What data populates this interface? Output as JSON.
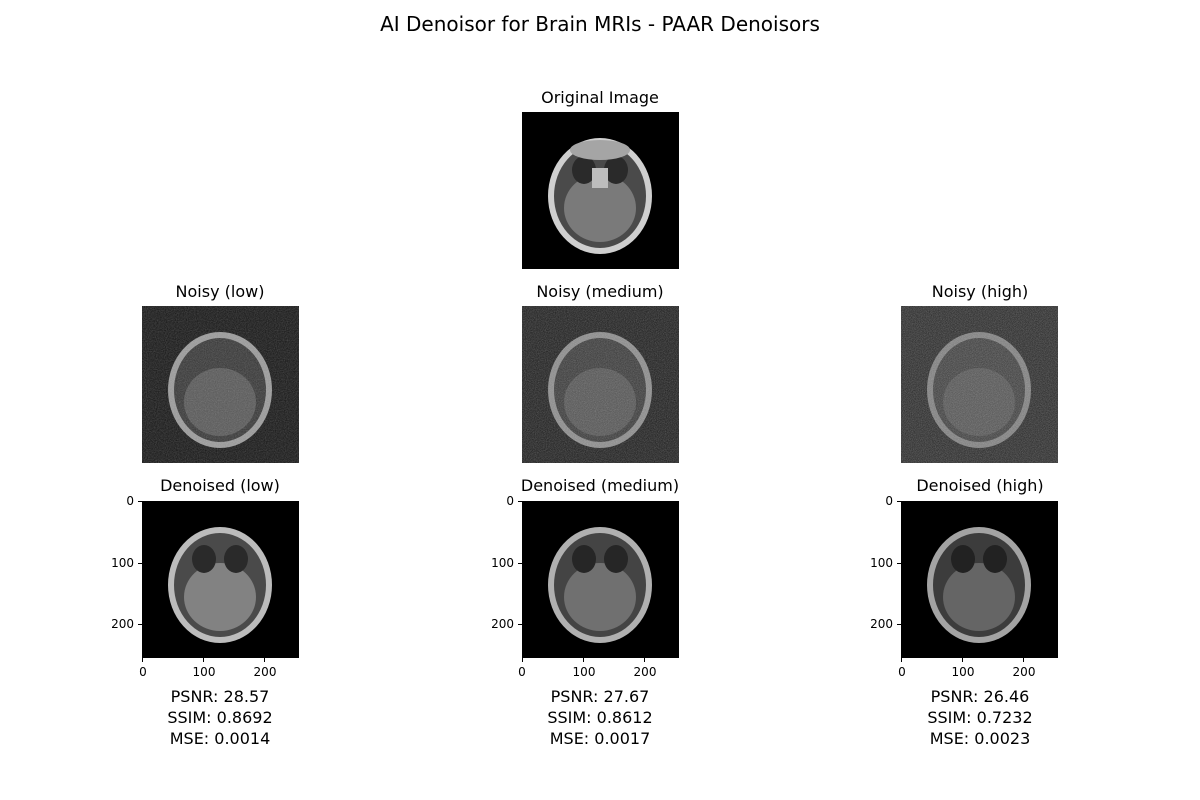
{
  "figure_title": "AI Denoisor for Brain MRIs - PAAR Denoisors",
  "original": {
    "title": "Original Image"
  },
  "noisy": [
    {
      "title": "Noisy (low)",
      "level": "low"
    },
    {
      "title": "Noisy (medium)",
      "level": "medium"
    },
    {
      "title": "Noisy (high)",
      "level": "high"
    }
  ],
  "denoised": [
    {
      "title": "Denoised (low)",
      "psnr": "PSNR: 28.57",
      "ssim": "SSIM: 0.8692",
      "mse": "MSE: 0.0014"
    },
    {
      "title": "Denoised (medium)",
      "psnr": "PSNR: 27.67",
      "ssim": "SSIM: 0.8612",
      "mse": "MSE: 0.0017"
    },
    {
      "title": "Denoised (high)",
      "psnr": "PSNR: 26.46",
      "ssim": "SSIM: 0.7232",
      "mse": "MSE: 0.0023"
    }
  ],
  "axis_ticks": {
    "y": [
      "0",
      "100",
      "200"
    ],
    "x": [
      "0",
      "100",
      "200"
    ]
  }
}
